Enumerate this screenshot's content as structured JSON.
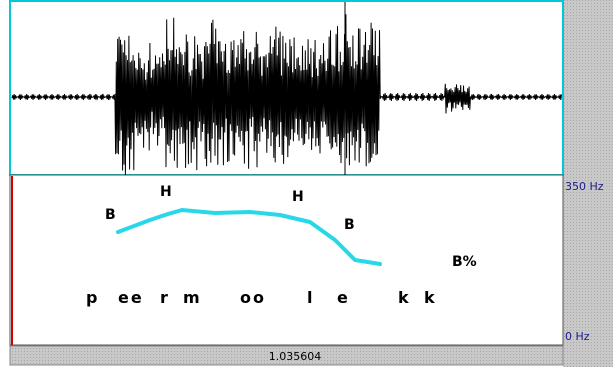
{
  "axis": {
    "top_label": "350 Hz",
    "bottom_label": "0 Hz"
  },
  "status": {
    "time": "1.035604"
  },
  "tones": [
    "B",
    "H",
    "H",
    "B",
    "B%"
  ],
  "segments": [
    "p",
    "ee",
    "r",
    "m",
    "oo",
    "l",
    "e",
    "k",
    "k"
  ]
}
